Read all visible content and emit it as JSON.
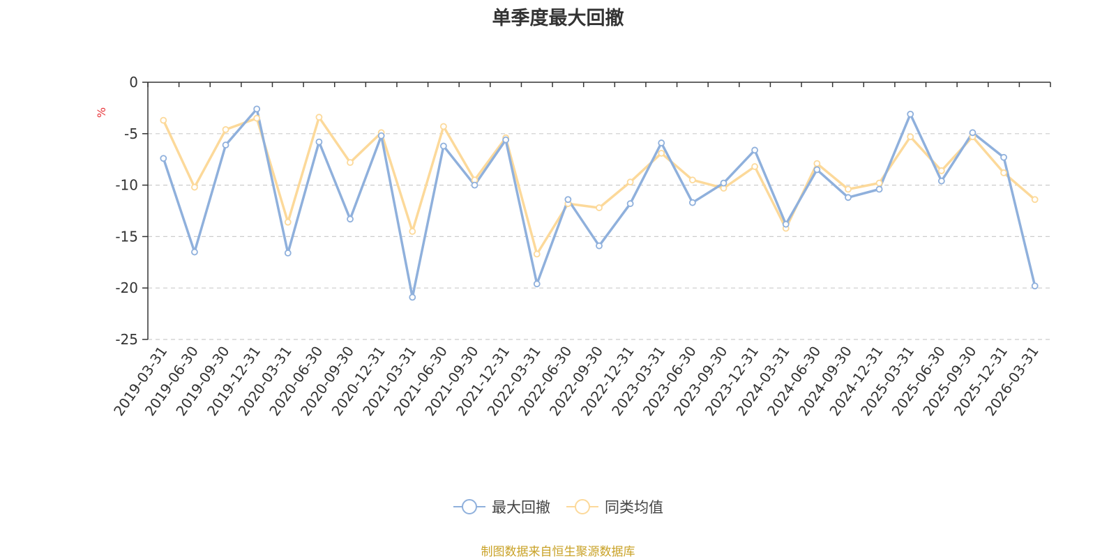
{
  "chart_data": {
    "type": "line",
    "title": "单季度最大回撤",
    "unit": "%",
    "ylim": [
      -25,
      0
    ],
    "yticks": [
      0,
      -5,
      -10,
      -15,
      -20,
      -25
    ],
    "grid": true,
    "legend_position": "bottom-center",
    "categories": [
      "2019-03-31",
      "2019-06-30",
      "2019-09-30",
      "2019-12-31",
      "2020-03-31",
      "2020-06-30",
      "2020-09-30",
      "2020-12-31",
      "2021-03-31",
      "2021-06-30",
      "2021-09-30",
      "2021-12-31",
      "2022-03-31",
      "2022-06-30",
      "2022-09-30",
      "2022-12-31",
      "2023-03-31",
      "2023-06-30",
      "2023-09-30",
      "2023-12-31",
      "2024-03-31",
      "2024-06-30",
      "2024-09-30",
      "2024-12-31",
      "2025-03-31",
      "2025-06-30",
      "2025-09-30",
      "2025-12-31",
      "2026-03-31"
    ],
    "series": [
      {
        "name": "最大回撤",
        "color": "#8fb0dc",
        "values": [
          -7.4,
          -16.5,
          -6.1,
          -2.6,
          -16.6,
          -5.8,
          -13.3,
          -5.2,
          -20.9,
          -6.2,
          -10.0,
          -5.6,
          -19.6,
          -11.4,
          -15.9,
          -11.8,
          -5.9,
          -11.7,
          -9.8,
          -6.6,
          -13.8,
          -8.5,
          -11.2,
          -10.4,
          -3.1,
          -9.6,
          -4.9,
          -7.3,
          -19.8
        ]
      },
      {
        "name": "同类均值",
        "color": "#fcd99a",
        "values": [
          -3.7,
          -10.2,
          -4.6,
          -3.5,
          -13.6,
          -3.4,
          -7.8,
          -4.9,
          -14.5,
          -4.3,
          -9.5,
          -5.4,
          -16.7,
          -11.8,
          -12.2,
          -9.7,
          -6.9,
          -9.5,
          -10.3,
          -8.2,
          -14.2,
          -7.9,
          -10.4,
          -9.8,
          -5.3,
          -8.6,
          -5.3,
          -8.8,
          -11.4
        ]
      }
    ],
    "source_note": "制图数据来自恒生聚源数据库"
  }
}
